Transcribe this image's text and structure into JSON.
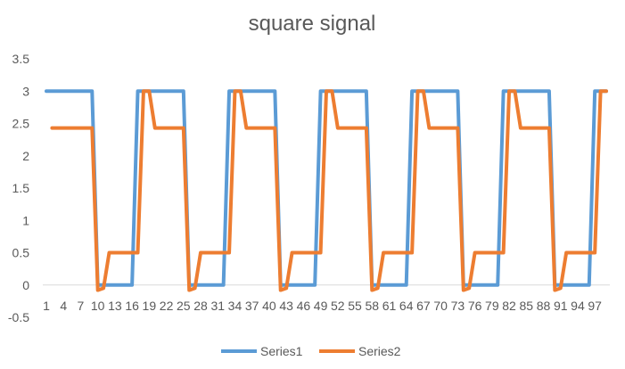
{
  "chart_data": {
    "type": "line",
    "title": "square signal",
    "xlabel": "",
    "ylabel": "",
    "ylim": [
      -0.5,
      3.5
    ],
    "ytick_step": 0.5,
    "y_ticks": [
      "3.5",
      "3",
      "2.5",
      "2",
      "1.5",
      "1",
      "0.5",
      "0",
      "-0.5"
    ],
    "x_ticks": [
      "1",
      "4",
      "7",
      "10",
      "13",
      "16",
      "19",
      "22",
      "25",
      "28",
      "31",
      "34",
      "37",
      "40",
      "43",
      "46",
      "49",
      "52",
      "55",
      "58",
      "61",
      "64",
      "67",
      "70",
      "73",
      "76",
      "79",
      "82",
      "85",
      "88",
      "91",
      "94",
      "97"
    ],
    "x": [
      1,
      2,
      3,
      4,
      5,
      6,
      7,
      8,
      9,
      10,
      11,
      12,
      13,
      14,
      15,
      16,
      17,
      18,
      19,
      20,
      21,
      22,
      23,
      24,
      25,
      26,
      27,
      28,
      29,
      30,
      31,
      32,
      33,
      34,
      35,
      36,
      37,
      38,
      39,
      40,
      41,
      42,
      43,
      44,
      45,
      46,
      47,
      48,
      49,
      50,
      51,
      52,
      53,
      54,
      55,
      56,
      57,
      58,
      59,
      60,
      61,
      62,
      63,
      64,
      65,
      66,
      67,
      68,
      69,
      70,
      71,
      72,
      73,
      74,
      75,
      76,
      77,
      78,
      79,
      80,
      81,
      82,
      83,
      84,
      85,
      86,
      87,
      88,
      89,
      90,
      91,
      92,
      93,
      94,
      95,
      96,
      97,
      98,
      99
    ],
    "grid": false,
    "legend_position": "bottom",
    "series": [
      {
        "name": "Series1",
        "color": "#5B9BD5",
        "values": [
          3,
          3,
          3,
          3,
          3,
          3,
          3,
          3,
          3,
          0,
          0,
          0,
          0,
          0,
          0,
          0,
          3,
          3,
          3,
          3,
          3,
          3,
          3,
          3,
          3,
          0,
          0,
          0,
          0,
          0,
          0,
          0,
          3,
          3,
          3,
          3,
          3,
          3,
          3,
          3,
          3,
          0,
          0,
          0,
          0,
          0,
          0,
          0,
          3,
          3,
          3,
          3,
          3,
          3,
          3,
          3,
          3,
          0,
          0,
          0,
          0,
          0,
          0,
          0,
          3,
          3,
          3,
          3,
          3,
          3,
          3,
          3,
          3,
          0,
          0,
          0,
          0,
          0,
          0,
          0,
          3,
          3,
          3,
          3,
          3,
          3,
          3,
          3,
          3,
          0,
          0,
          0,
          0,
          0,
          0,
          0,
          3,
          3,
          3
        ]
      },
      {
        "name": "Series2",
        "color": "#ED7D31",
        "values": [
          null,
          2.43,
          2.43,
          2.43,
          2.43,
          2.43,
          2.43,
          2.43,
          2.43,
          -0.08,
          -0.05,
          0.5,
          0.5,
          0.5,
          0.5,
          0.5,
          0.5,
          3,
          3,
          2.43,
          2.43,
          2.43,
          2.43,
          2.43,
          2.43,
          -0.08,
          -0.05,
          0.5,
          0.5,
          0.5,
          0.5,
          0.5,
          0.5,
          3,
          3,
          2.43,
          2.43,
          2.43,
          2.43,
          2.43,
          2.43,
          -0.08,
          -0.05,
          0.5,
          0.5,
          0.5,
          0.5,
          0.5,
          0.5,
          3,
          3,
          2.43,
          2.43,
          2.43,
          2.43,
          2.43,
          2.43,
          -0.08,
          -0.05,
          0.5,
          0.5,
          0.5,
          0.5,
          0.5,
          0.5,
          3,
          3,
          2.43,
          2.43,
          2.43,
          2.43,
          2.43,
          2.43,
          -0.08,
          -0.05,
          0.5,
          0.5,
          0.5,
          0.5,
          0.5,
          0.5,
          3,
          3,
          2.43,
          2.43,
          2.43,
          2.43,
          2.43,
          2.43,
          -0.08,
          -0.05,
          0.5,
          0.5,
          0.5,
          0.5,
          0.5,
          0.5,
          3,
          3
        ]
      }
    ]
  }
}
